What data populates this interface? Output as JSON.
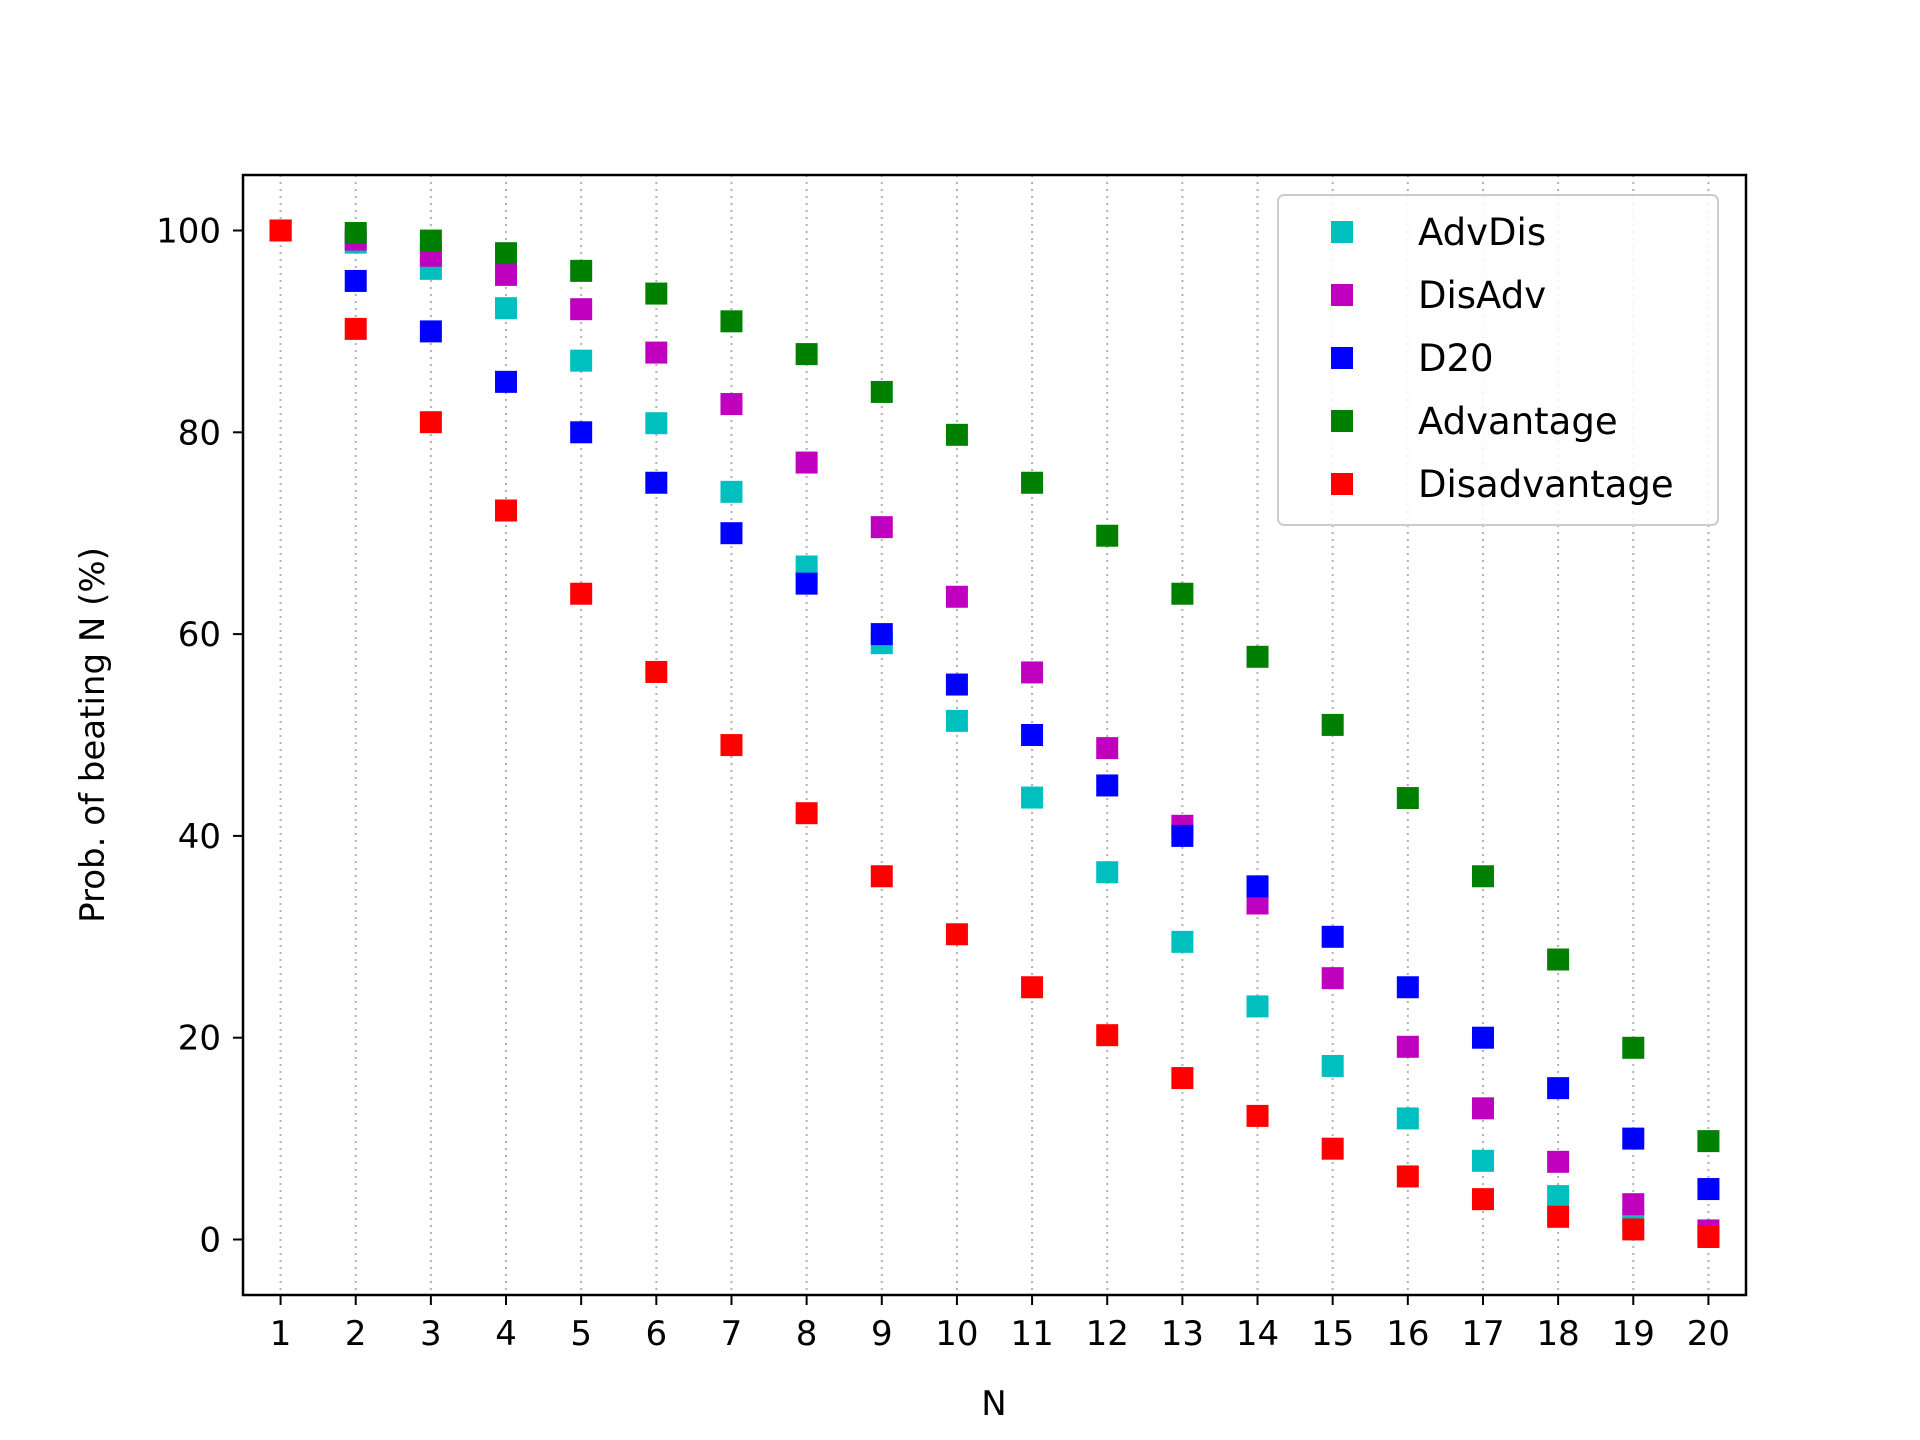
{
  "chart_data": {
    "type": "scatter",
    "title": "",
    "xlabel": "N",
    "ylabel": "Prob. of beating N (%)",
    "x": [
      1,
      2,
      3,
      4,
      5,
      6,
      7,
      8,
      9,
      10,
      11,
      12,
      13,
      14,
      15,
      16,
      17,
      18,
      19,
      20
    ],
    "xlim": [
      0.5,
      20.5
    ],
    "ylim": [
      -5.5,
      105.5
    ],
    "yticks": [
      0,
      20,
      40,
      60,
      80,
      100
    ],
    "grid": "vertical dotted",
    "legend_position": "top-right",
    "series": [
      {
        "name": "AdvDis",
        "color": "#00bfbf",
        "values": [
          100,
          98.8,
          96.2,
          92.3,
          87.1,
          80.9,
          74.1,
          66.7,
          59.1,
          51.4,
          43.8,
          36.4,
          29.5,
          23.1,
          17.2,
          12.0,
          7.8,
          4.3,
          1.9,
          0.5
        ]
      },
      {
        "name": "DisAdv",
        "color": "#bf00bf",
        "values": [
          100,
          99.1,
          97.5,
          95.6,
          92.2,
          87.9,
          82.8,
          77.0,
          70.6,
          63.7,
          56.2,
          48.7,
          41.0,
          33.3,
          25.9,
          19.1,
          13.0,
          7.7,
          3.5,
          0.9
        ]
      },
      {
        "name": "D20",
        "color": "#0000ff",
        "values": [
          100,
          95,
          90,
          85,
          80,
          75,
          70,
          65,
          60,
          55,
          50,
          45,
          40,
          35,
          30,
          25,
          20,
          15,
          10,
          5
        ]
      },
      {
        "name": "Advantage",
        "color": "#008000",
        "values": [
          100,
          99.75,
          99.0,
          97.75,
          96.0,
          93.75,
          91.0,
          87.75,
          84.0,
          79.75,
          75.0,
          69.75,
          64.0,
          57.75,
          51.0,
          43.75,
          36.0,
          27.75,
          19.0,
          9.75
        ]
      },
      {
        "name": "Disadvantage",
        "color": "#ff0000",
        "values": [
          100,
          90.25,
          81.0,
          72.25,
          64.0,
          56.25,
          49.0,
          42.25,
          36.0,
          30.25,
          25.0,
          20.25,
          16.0,
          12.25,
          9.0,
          6.25,
          4.0,
          2.25,
          1.0,
          0.25
        ]
      }
    ]
  }
}
